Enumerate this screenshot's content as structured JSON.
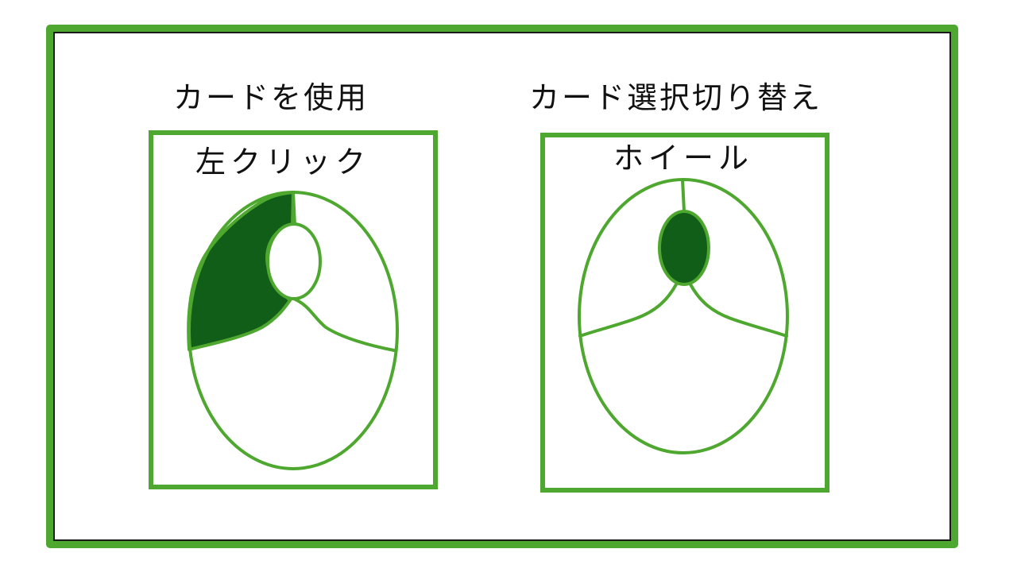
{
  "colors": {
    "frame_green": "#4ea72e",
    "fill_dark_green": "#105e17",
    "inner_border": "#1a1a1a",
    "background": "#ffffff"
  },
  "left_section": {
    "heading": "カードを使用",
    "label": "左クリック",
    "highlighted_part": "left-button"
  },
  "right_section": {
    "heading": "カード選択切り替え",
    "label": "ホイール",
    "highlighted_part": "scroll-wheel"
  }
}
